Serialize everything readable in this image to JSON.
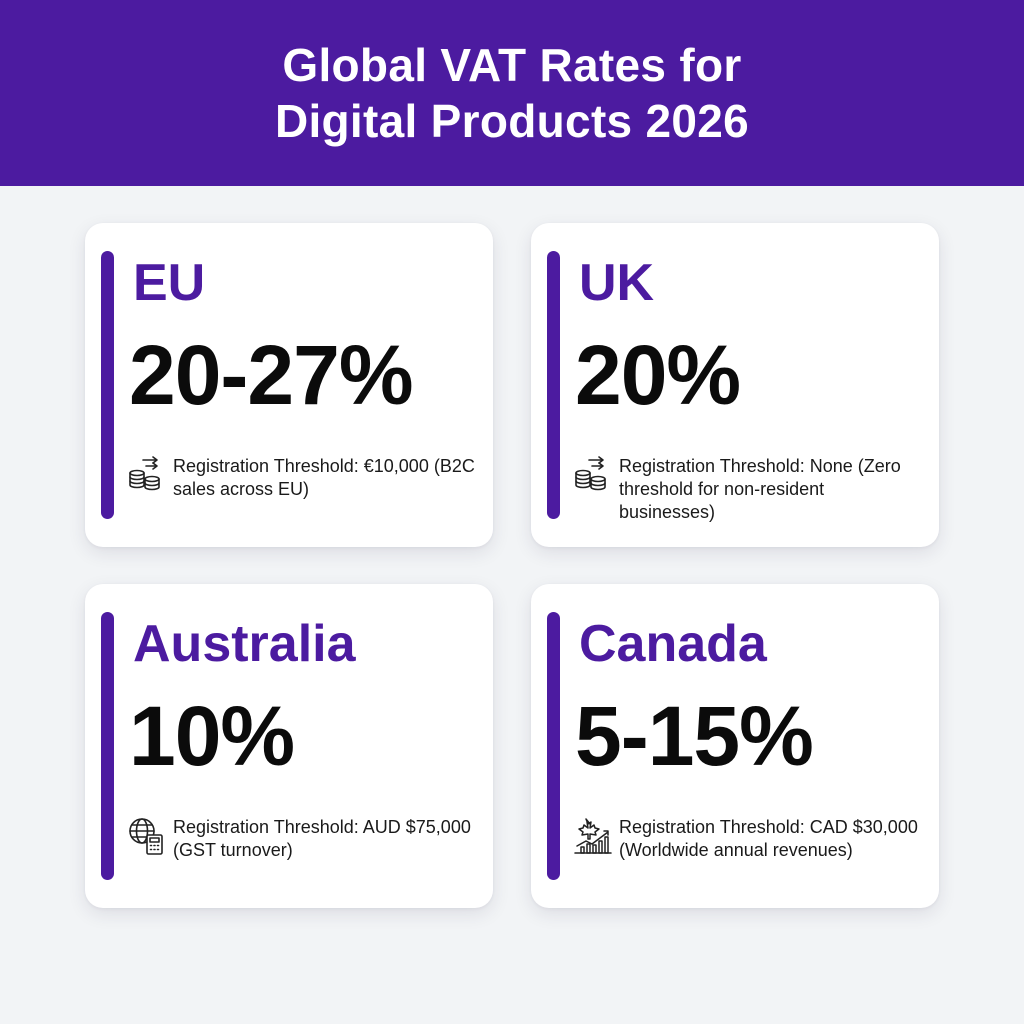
{
  "title": {
    "line1": "Global VAT Rates for",
    "line2": "Digital Products 2026"
  },
  "colors": {
    "accent": "#4c1ba0",
    "background": "#f2f4f6",
    "card": "#ffffff",
    "rate_text": "#0b0b0b"
  },
  "cards": [
    {
      "region": "EU",
      "rate": "20-27%",
      "threshold": "Registration Threshold: €10,000 (B2C sales across EU)",
      "icon": "coins-transfer-icon"
    },
    {
      "region": "UK",
      "rate": "20%",
      "threshold": "Registration Threshold: None (Zero threshold for non-resident businesses)",
      "icon": "coins-transfer-icon"
    },
    {
      "region": "Australia",
      "rate": "10%",
      "threshold": "Registration Threshold: AUD $75,000 (GST turnover)",
      "icon": "globe-calculator-icon"
    },
    {
      "region": "Canada",
      "rate": "5-15%",
      "threshold": "Registration Threshold: CAD $30,000 (Worldwide annual revenues)",
      "icon": "maple-leaf-chart-icon"
    }
  ]
}
